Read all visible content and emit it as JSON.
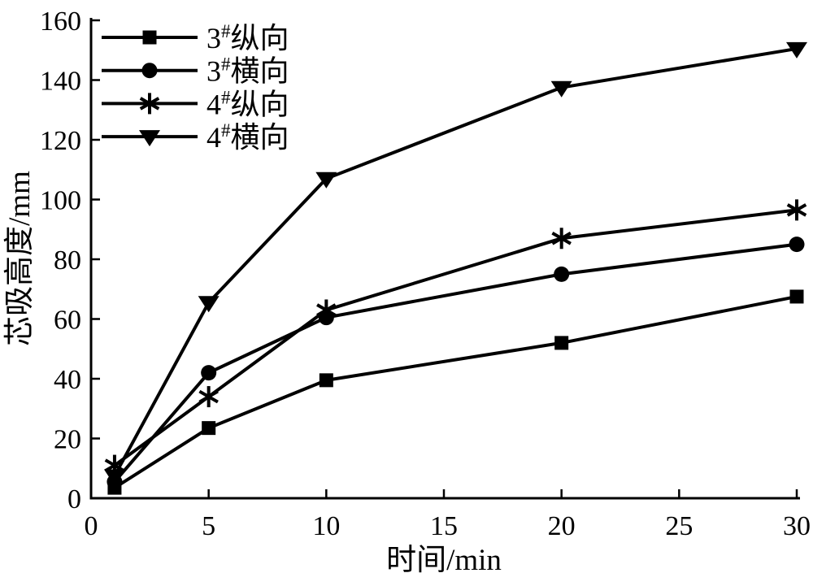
{
  "figure": {
    "background": "#ffffff",
    "ink_color": "#000000"
  },
  "chart_data": {
    "type": "line",
    "title": "",
    "xlabel": "时间/min",
    "ylabel": "芯吸高度/mm",
    "xlim": [
      0,
      30
    ],
    "ylim": [
      0,
      160
    ],
    "x_ticks": [
      0,
      5,
      10,
      15,
      20,
      25,
      30
    ],
    "y_ticks": [
      0,
      20,
      40,
      60,
      80,
      100,
      120,
      140,
      160
    ],
    "grid": false,
    "legend_position": "top-left-inside",
    "line_color": "#000000",
    "x": [
      1,
      5,
      10,
      20,
      30
    ],
    "series": [
      {
        "name": "3#纵向",
        "legend_base": "3",
        "legend_sup": "#",
        "legend_rest": "纵向",
        "marker": "square",
        "values": [
          3.5,
          23.5,
          39.5,
          52,
          67.5
        ]
      },
      {
        "name": "3#横向",
        "legend_base": "3",
        "legend_sup": "#",
        "legend_rest": "横向",
        "marker": "circle",
        "values": [
          5.5,
          42,
          60.5,
          75,
          85
        ]
      },
      {
        "name": "4#纵向",
        "legend_base": "4",
        "legend_sup": "#",
        "legend_rest": "纵向",
        "marker": "asterisk",
        "values": [
          11,
          34,
          63,
          87,
          96.5
        ]
      },
      {
        "name": "4#横向",
        "legend_base": "4",
        "legend_sup": "#",
        "legend_rest": "横向",
        "marker": "triangle-down",
        "values": [
          7.5,
          65.5,
          107,
          137.5,
          150.5
        ]
      }
    ]
  }
}
